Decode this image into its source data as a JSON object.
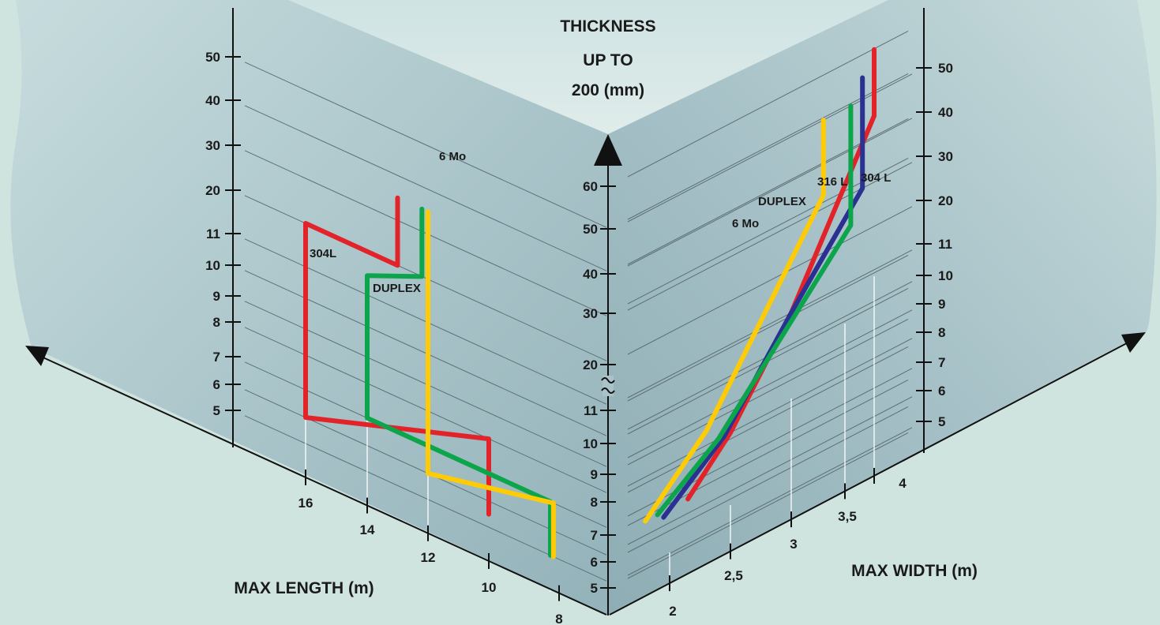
{
  "colors": {
    "304L": "#e2232a",
    "316L": "#2b3192",
    "DUPLEX": "#0da54b",
    "6Mo": "#ffcb05",
    "background": "#cfe3df"
  },
  "chart_data": {
    "type": "line",
    "title": "THICKNESS UP TO 200 (mm)",
    "title_lines": [
      "THICKNESS",
      "UP TO",
      "200 (mm)"
    ],
    "panels": [
      {
        "name": "length",
        "xlabel": "MAX LENGTH (m)",
        "x_ticks": [
          "16",
          "14",
          "12",
          "10",
          "8"
        ],
        "y_ticks": [
          "5",
          "6",
          "7",
          "8",
          "9",
          "10",
          "11",
          "20",
          "30",
          "40",
          "50"
        ],
        "series": [
          {
            "name": "304L",
            "color_key": "304L",
            "label": "304L",
            "points": [
              [
                10,
                5.5
              ],
              [
                10,
                8
              ],
              [
                16,
                6
              ],
              [
                16,
                20
              ],
              [
                13,
                20
              ],
              [
                13,
                35
              ]
            ]
          },
          {
            "name": "DUPLEX",
            "color_key": "DUPLEX",
            "label": "DUPLEX",
            "points": [
              [
                8,
                5
              ],
              [
                8,
                7
              ],
              [
                14,
                7
              ],
              [
                14,
                15
              ],
              [
                12.2,
                20
              ],
              [
                12.2,
                35
              ]
            ]
          },
          {
            "name": "6 Mo",
            "color_key": "6Mo",
            "label": "6 Mo",
            "points": [
              [
                7.9,
                5
              ],
              [
                7.9,
                7
              ],
              [
                12,
                6
              ],
              [
                12,
                35
              ]
            ]
          }
        ]
      },
      {
        "name": "width",
        "xlabel": "MAX WIDTH (m)",
        "x_ticks": [
          "2",
          "2,5",
          "3",
          "3,5",
          "4"
        ],
        "y_ticks_center": [
          "5",
          "6",
          "7",
          "8",
          "9",
          "10",
          "11",
          "20",
          "30",
          "40",
          "50",
          "60"
        ],
        "y_ticks_right": [
          "5",
          "6",
          "7",
          "8",
          "9",
          "10",
          "11",
          "20",
          "30",
          "40",
          "50"
        ],
        "series": [
          {
            "name": "304 L",
            "color_key": "304L",
            "label": "304 L",
            "points": [
              [
                2.15,
                6.5
              ],
              [
                2.5,
                8
              ],
              [
                3,
                11
              ],
              [
                4,
                45
              ],
              [
                4,
                60
              ]
            ]
          },
          {
            "name": "316 L",
            "color_key": "316L",
            "label": "316 L",
            "points": [
              [
                1.95,
                6.3
              ],
              [
                2.45,
                8
              ],
              [
                3,
                11
              ],
              [
                3.8,
                30
              ],
              [
                3.8,
                55
              ]
            ]
          },
          {
            "name": "DUPLEX",
            "color_key": "DUPLEX",
            "label": "DUPLEX",
            "points": [
              [
                1.9,
                6.5
              ],
              [
                2.4,
                8
              ],
              [
                3.6,
                23
              ],
              [
                3.6,
                50
              ]
            ]
          },
          {
            "name": "6 Mo",
            "color_key": "6Mo",
            "label": "6 Mo",
            "points": [
              [
                1.8,
                6.5
              ],
              [
                2.3,
                8.5
              ],
              [
                3.3,
                33
              ],
              [
                3.3,
                50
              ]
            ]
          }
        ]
      }
    ]
  }
}
